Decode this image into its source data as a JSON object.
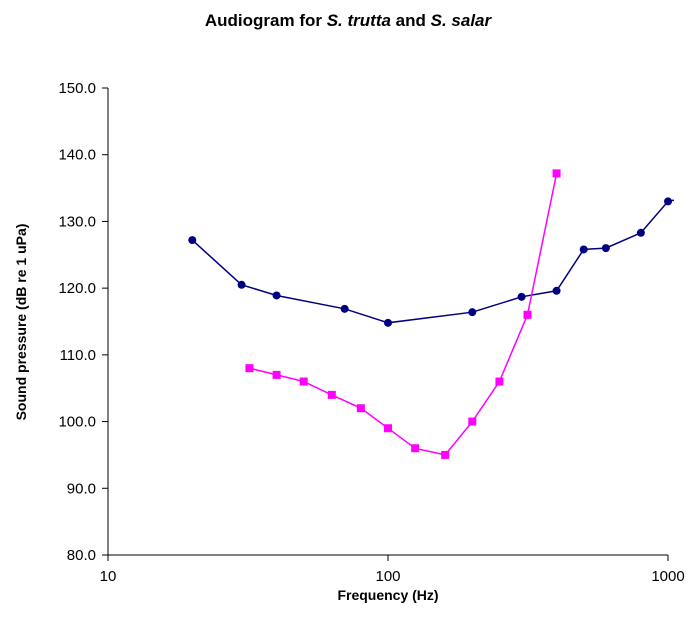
{
  "chart_data": {
    "type": "line",
    "title": {
      "prefix": "Audiogram for ",
      "species1": "S. trutta",
      "middle": " and ",
      "species2": "S. salar"
    },
    "xlabel": "Frequency (Hz)",
    "ylabel": "Sound pressure (dB re 1 uPa)",
    "x_scale": "log",
    "xlim": [
      10,
      1000
    ],
    "ylim": [
      80,
      150
    ],
    "x_ticks": [
      10,
      100,
      1000
    ],
    "x_tick_labels": [
      "10",
      "100",
      "1000"
    ],
    "y_ticks": [
      80,
      90,
      100,
      110,
      120,
      130,
      140,
      150
    ],
    "y_tick_labels": [
      "80.0",
      "90.0",
      "100.0",
      "110.0",
      "120.0",
      "130.0",
      "140.0",
      "150.0"
    ],
    "grid": false,
    "legend": "none",
    "series": [
      {
        "color": "#000080",
        "marker": "circle",
        "x": [
          20,
          30,
          40,
          70,
          100,
          200,
          300,
          400,
          500,
          600,
          800,
          1000,
          1050
        ],
        "y": [
          127.2,
          120.5,
          118.9,
          116.9,
          114.8,
          116.4,
          118.7,
          119.6,
          125.8,
          126.0,
          128.3,
          133.0,
          133.2
        ],
        "marker_count": 12
      },
      {
        "color": "#ff00ff",
        "marker": "square",
        "x": [
          32,
          40,
          50,
          63,
          80,
          100,
          125,
          160,
          200,
          250,
          315,
          400
        ],
        "y": [
          108.0,
          107.0,
          106.0,
          104.0,
          102.0,
          99.0,
          96.0,
          95.0,
          100.0,
          106.0,
          116.0,
          137.2
        ],
        "marker_count": 12
      }
    ]
  }
}
